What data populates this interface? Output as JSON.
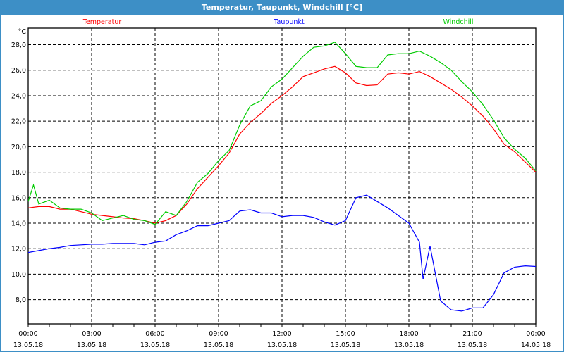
{
  "window": {
    "title": "Temperatur, Taupunkt, Windchill [°C]"
  },
  "chart_data": {
    "type": "line",
    "title": "Temperatur, Taupunkt, Windchill [°C]",
    "ylabel": "°C",
    "xlabel": "",
    "xlim_hours": [
      0,
      24
    ],
    "ylim": [
      6.1,
      29.3
    ],
    "grid": true,
    "legend_placement": "top",
    "y_ticks": [
      8,
      10,
      12,
      14,
      16,
      18,
      20,
      22,
      24,
      26,
      28
    ],
    "y_tick_labels": [
      "8,0",
      "10,0",
      "12,0",
      "14,0",
      "16,0",
      "18,0",
      "20,0",
      "22,0",
      "24,0",
      "26,0",
      "28,0"
    ],
    "x_ticks": [
      {
        "hour": 0,
        "time": "00:00",
        "date": "13.05.18"
      },
      {
        "hour": 3,
        "time": "03:00",
        "date": "13.05.18"
      },
      {
        "hour": 6,
        "time": "06:00",
        "date": "13.05.18"
      },
      {
        "hour": 9,
        "time": "09:00",
        "date": "13.05.18"
      },
      {
        "hour": 12,
        "time": "12:00",
        "date": "13.05.18"
      },
      {
        "hour": 15,
        "time": "15:00",
        "date": "13.05.18"
      },
      {
        "hour": 18,
        "time": "18:00",
        "date": "13.05.18"
      },
      {
        "hour": 21,
        "time": "21:00",
        "date": "13.05.18"
      },
      {
        "hour": 24,
        "time": "00:00",
        "date": "14.05.18"
      }
    ],
    "series": [
      {
        "name": "Temperatur",
        "color": "#ff0000",
        "x": [
          0,
          0.5,
          1,
          1.5,
          2,
          2.5,
          3,
          3.5,
          4,
          4.5,
          5,
          5.5,
          6,
          6.5,
          7,
          7.5,
          8,
          8.5,
          9,
          9.5,
          10,
          10.5,
          11,
          11.5,
          12,
          12.5,
          13,
          13.5,
          14,
          14.5,
          15,
          15.5,
          16,
          16.5,
          17,
          17.5,
          18,
          18.5,
          19,
          19.5,
          20,
          20.5,
          21,
          21.5,
          22,
          22.5,
          23,
          23.5,
          24
        ],
        "y": [
          15.2,
          15.3,
          15.3,
          15.1,
          15.1,
          14.9,
          14.7,
          14.6,
          14.5,
          14.4,
          14.35,
          14.2,
          14.0,
          14.2,
          14.6,
          15.5,
          16.7,
          17.6,
          18.5,
          19.5,
          21.0,
          21.9,
          22.6,
          23.4,
          24.0,
          24.7,
          25.5,
          25.8,
          26.1,
          26.3,
          25.8,
          25.0,
          24.8,
          24.85,
          25.7,
          25.8,
          25.7,
          25.9,
          25.5,
          25.0,
          24.5,
          23.9,
          23.2,
          22.4,
          21.4,
          20.2,
          19.6,
          18.8,
          18.0
        ]
      },
      {
        "name": "Taupunkt",
        "color": "#0000ff",
        "x": [
          0,
          0.5,
          1,
          1.5,
          2,
          2.5,
          3,
          3.5,
          4,
          4.5,
          5,
          5.5,
          6,
          6.5,
          7,
          7.5,
          8,
          8.5,
          9,
          9.5,
          10,
          10.5,
          11,
          11.5,
          12,
          12.5,
          13,
          13.5,
          14,
          14.5,
          15,
          15.5,
          16,
          16.5,
          17,
          17.5,
          18,
          18.5,
          18.67,
          19,
          19.5,
          20,
          20.5,
          21,
          21.5,
          22,
          22.5,
          23,
          23.5,
          24
        ],
        "y": [
          11.7,
          11.85,
          12.0,
          12.1,
          12.25,
          12.3,
          12.35,
          12.35,
          12.4,
          12.4,
          12.4,
          12.3,
          12.5,
          12.6,
          13.1,
          13.4,
          13.8,
          13.8,
          14.0,
          14.2,
          14.95,
          15.05,
          14.8,
          14.8,
          14.5,
          14.6,
          14.6,
          14.45,
          14.1,
          13.85,
          14.2,
          16.0,
          16.2,
          15.7,
          15.2,
          14.6,
          14.0,
          12.5,
          9.6,
          12.2,
          7.9,
          7.2,
          7.1,
          7.35,
          7.35,
          8.4,
          10.1,
          10.55,
          10.65,
          10.6
        ]
      },
      {
        "name": "Windchill",
        "color": "#00cc00",
        "x": [
          0,
          0.25,
          0.5,
          1,
          1.5,
          2,
          2.5,
          3,
          3.5,
          4,
          4.5,
          5,
          5.5,
          6,
          6.5,
          7,
          7.5,
          8,
          8.5,
          9,
          9.5,
          10,
          10.5,
          11,
          11.5,
          12,
          12.5,
          13,
          13.5,
          14,
          14.5,
          15,
          15.5,
          16,
          16.5,
          17,
          17.5,
          18,
          18.5,
          19,
          19.5,
          20,
          20.5,
          21,
          21.5,
          22,
          22.5,
          23,
          23.5,
          24
        ],
        "y": [
          15.7,
          17.0,
          15.5,
          15.8,
          15.2,
          15.1,
          15.1,
          14.8,
          14.2,
          14.4,
          14.6,
          14.3,
          14.2,
          13.9,
          14.9,
          14.6,
          15.7,
          17.2,
          17.9,
          18.9,
          19.7,
          21.7,
          23.2,
          23.6,
          24.7,
          25.3,
          26.2,
          27.1,
          27.8,
          27.9,
          28.2,
          27.3,
          26.3,
          26.2,
          26.2,
          27.2,
          27.3,
          27.3,
          27.5,
          27.1,
          26.6,
          26.0,
          25.1,
          24.3,
          23.3,
          22.1,
          20.7,
          19.8,
          19.1,
          18.1
        ]
      }
    ]
  }
}
